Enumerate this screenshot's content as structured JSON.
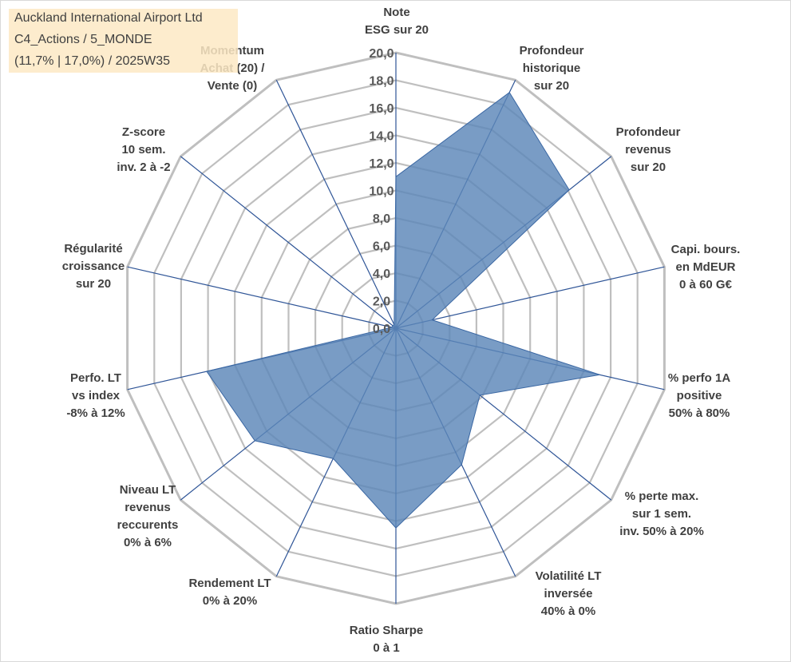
{
  "title": {
    "lines": [
      "Auckland International Airport Ltd",
      "C4_Actions / 5_MONDE",
      "(11,7% | 17,0%) / 2025W35"
    ]
  },
  "colors": {
    "fill": "#5b86b8",
    "edge": "#3a67a3",
    "grid": "#bfbfbf",
    "axis": "#2f5597",
    "title_bg": "#fde9c4"
  },
  "chart_data": {
    "type": "radar",
    "title": "Auckland International Airport Ltd",
    "rlim": [
      0,
      20
    ],
    "r_ticks": [
      "0,0",
      "2,0",
      "4,0",
      "6,0",
      "8,0",
      "10,0",
      "12,0",
      "14,0",
      "16,0",
      "18,0",
      "20,0"
    ],
    "grid": true,
    "categories": [
      [
        "Note",
        "ESG sur 20"
      ],
      [
        "Profondeur",
        "historique",
        "sur 20"
      ],
      [
        "Profondeur",
        "revenus",
        "sur 20"
      ],
      [
        "Capi. bours.",
        "en MdEUR",
        "0 à 60 G€"
      ],
      [
        "% perfo 1A",
        "positive",
        "50% à 80%"
      ],
      [
        "% perte max.",
        "sur 1 sem.",
        "inv. 50% à 20%"
      ],
      [
        "Volatilité LT",
        "inversée",
        "40% à 0%"
      ],
      [
        "Ratio Sharpe",
        "0 à 1"
      ],
      [
        "Rendement LT",
        "0% à 20%"
      ],
      [
        "Niveau LT",
        "revenus",
        "reccurents",
        "0% à 6%"
      ],
      [
        "Perfo. LT",
        "vs index",
        "-8% à 12%"
      ],
      [
        "Régularité",
        "croissance",
        "sur 20"
      ],
      [
        "Z-score",
        "10 sem.",
        "inv. 2 à -2"
      ],
      [
        "Momentum",
        "Achat (20) /",
        "Vente (0)"
      ]
    ],
    "values": [
      11.0,
      19.0,
      16.1,
      2.7,
      15.2,
      7.8,
      11.0,
      14.5,
      10.5,
      13.1,
      14.1,
      0.3,
      0.3,
      0.3
    ]
  }
}
